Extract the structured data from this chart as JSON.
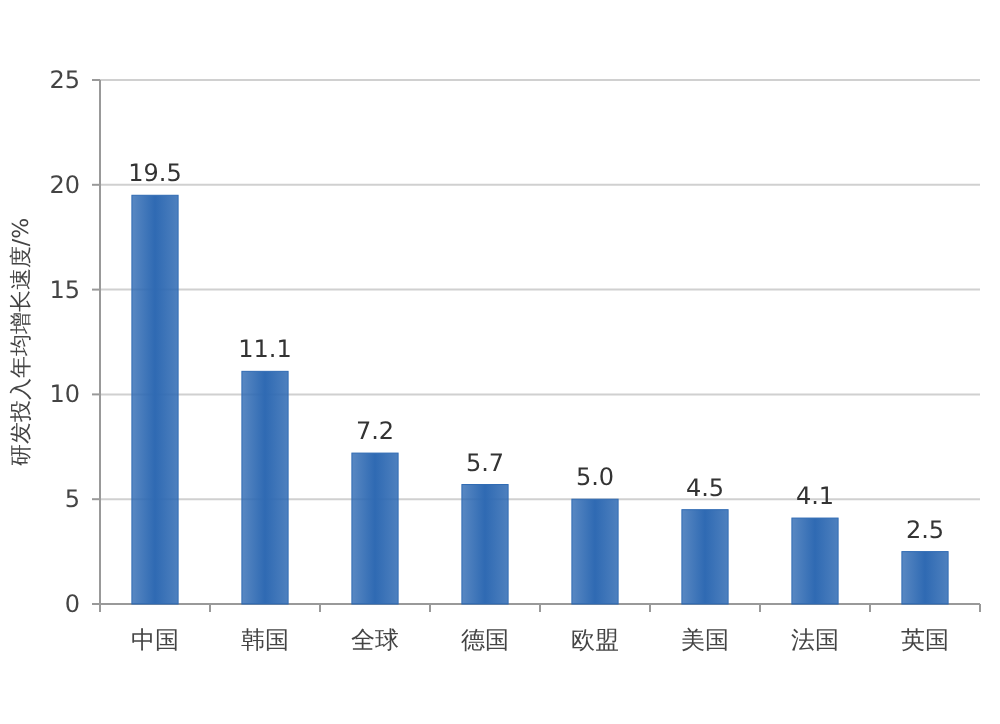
{
  "chart_data": {
    "type": "bar",
    "ylabel": "研发投入年均增长速度/%",
    "categories": [
      "中国",
      "韩国",
      "全球",
      "德国",
      "欧盟",
      "美国",
      "法国",
      "英国"
    ],
    "values": [
      19.5,
      11.1,
      7.2,
      5.7,
      5.0,
      4.5,
      4.1,
      2.5
    ],
    "value_labels": [
      "19.5",
      "11.1",
      "7.2",
      "5.7",
      "5.0",
      "4.5",
      "4.1",
      "2.5"
    ],
    "color": "#2f6ab3",
    "ylim": [
      0,
      25
    ],
    "yticks": [
      0,
      5,
      10,
      15,
      20,
      25
    ],
    "grid": "y"
  }
}
